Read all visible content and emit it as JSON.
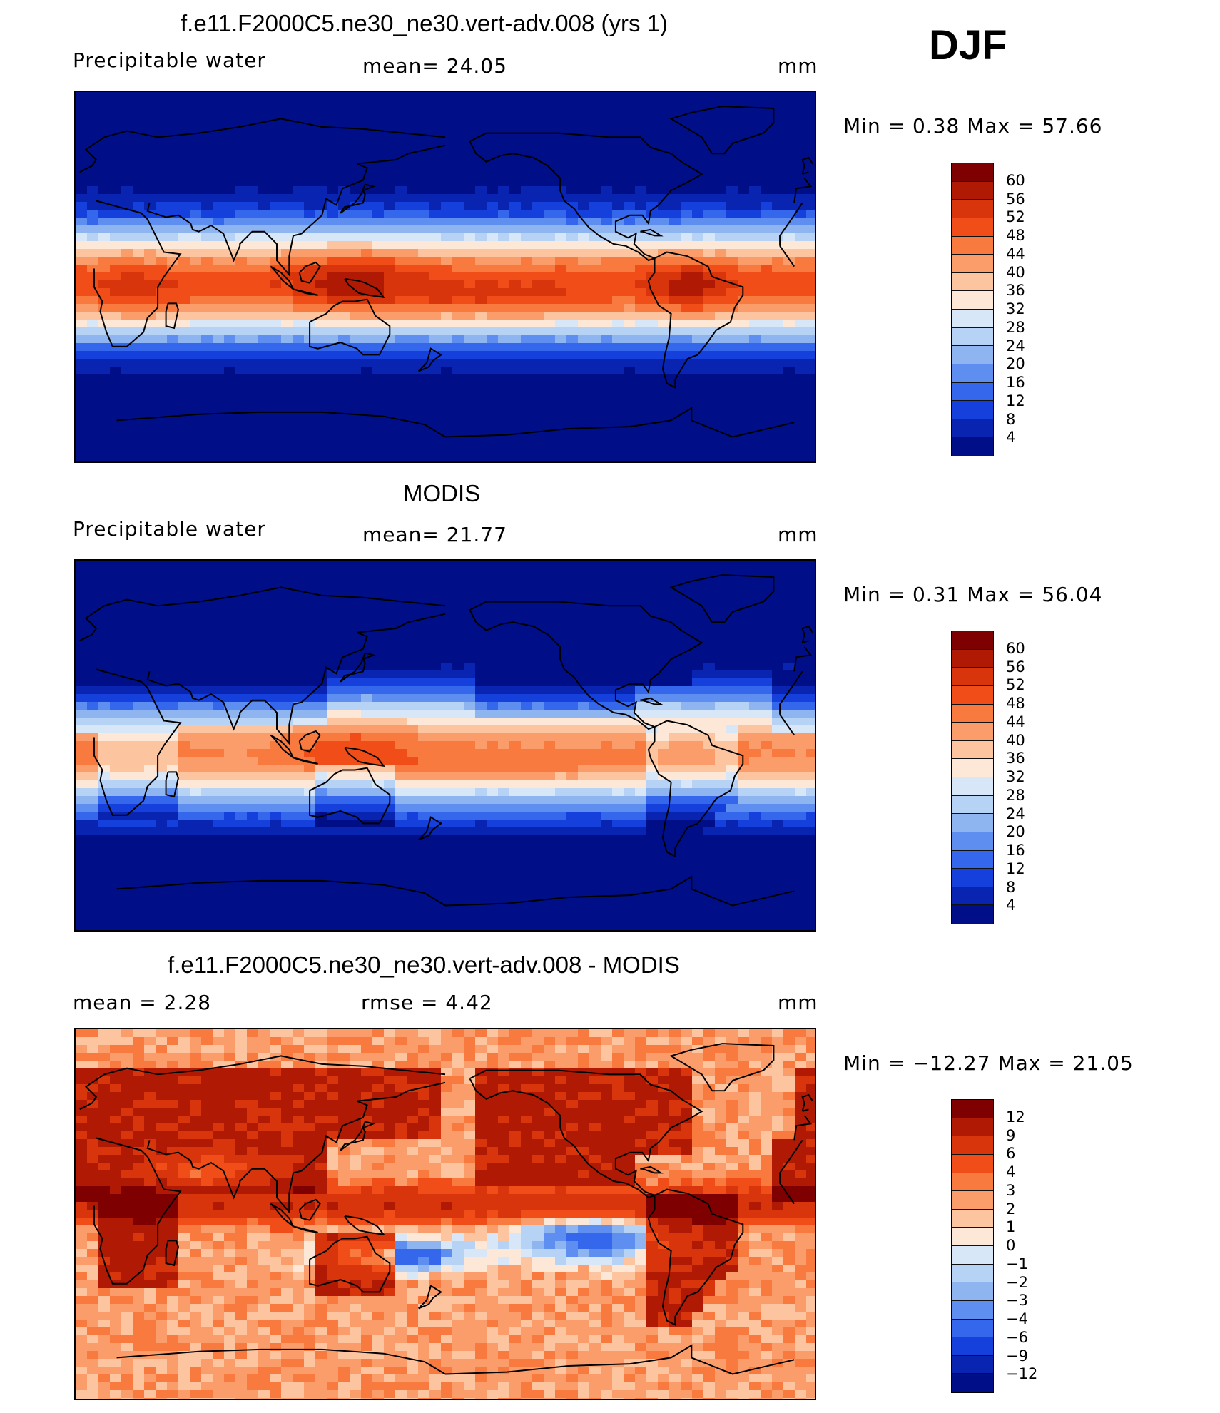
{
  "season": "DJF",
  "panels": [
    {
      "title": "f.e11.F2000C5.ne30_ne30.vert-adv.008 (yrs 1)",
      "left_label": "Precipitable  water",
      "center_label": "mean=   24.05",
      "units": "mm",
      "stats": "Min  =      0.38  Max  =     57.66",
      "field": "model",
      "colorbar": {
        "labels": [
          "60",
          "56",
          "52",
          "48",
          "44",
          "40",
          "36",
          "32",
          "28",
          "24",
          "20",
          "16",
          "12",
          "8",
          "4"
        ],
        "colors": [
          "#7f0000",
          "#b01a05",
          "#d9350c",
          "#f04d18",
          "#f97a3e",
          "#fb9d6b",
          "#fdc4a0",
          "#fde7d6",
          "#d8e7f7",
          "#b6d2f4",
          "#8fb5f1",
          "#5e8ff0",
          "#3467ec",
          "#1540dc",
          "#0824b0",
          "#000f87"
        ]
      }
    },
    {
      "title": "MODIS",
      "left_label": "Precipitable  water",
      "center_label": "mean=   21.77",
      "units": "mm",
      "stats": "Min  =      0.31  Max  =     56.04",
      "field": "obs",
      "colorbar": {
        "labels": [
          "60",
          "56",
          "52",
          "48",
          "44",
          "40",
          "36",
          "32",
          "28",
          "24",
          "20",
          "16",
          "12",
          "8",
          "4"
        ],
        "colors": [
          "#7f0000",
          "#b01a05",
          "#d9350c",
          "#f04d18",
          "#f97a3e",
          "#fb9d6b",
          "#fdc4a0",
          "#fde7d6",
          "#d8e7f7",
          "#b6d2f4",
          "#8fb5f1",
          "#5e8ff0",
          "#3467ec",
          "#1540dc",
          "#0824b0",
          "#000f87"
        ]
      }
    },
    {
      "title": "f.e11.F2000C5.ne30_ne30.vert-adv.008 - MODIS",
      "left_label": "mean  =      2.28",
      "center_label": "rmse  =      4.42",
      "units": "mm",
      "stats": "Min  =  −12.27  Max  =     21.05",
      "field": "diff",
      "colorbar": {
        "labels": [
          "12",
          "9",
          "6",
          "4",
          "3",
          "2",
          "1",
          "0",
          "−1",
          "−2",
          "−3",
          "−4",
          "−6",
          "−9",
          "−12"
        ],
        "colors": [
          "#7f0000",
          "#b01a05",
          "#d9350c",
          "#f04d18",
          "#f97a3e",
          "#fb9d6b",
          "#fdc4a0",
          "#fde7d6",
          "#d8e7f7",
          "#b6d2f4",
          "#8fb5f1",
          "#5e8ff0",
          "#3467ec",
          "#1540dc",
          "#0824b0",
          "#000f87"
        ]
      }
    }
  ]
}
